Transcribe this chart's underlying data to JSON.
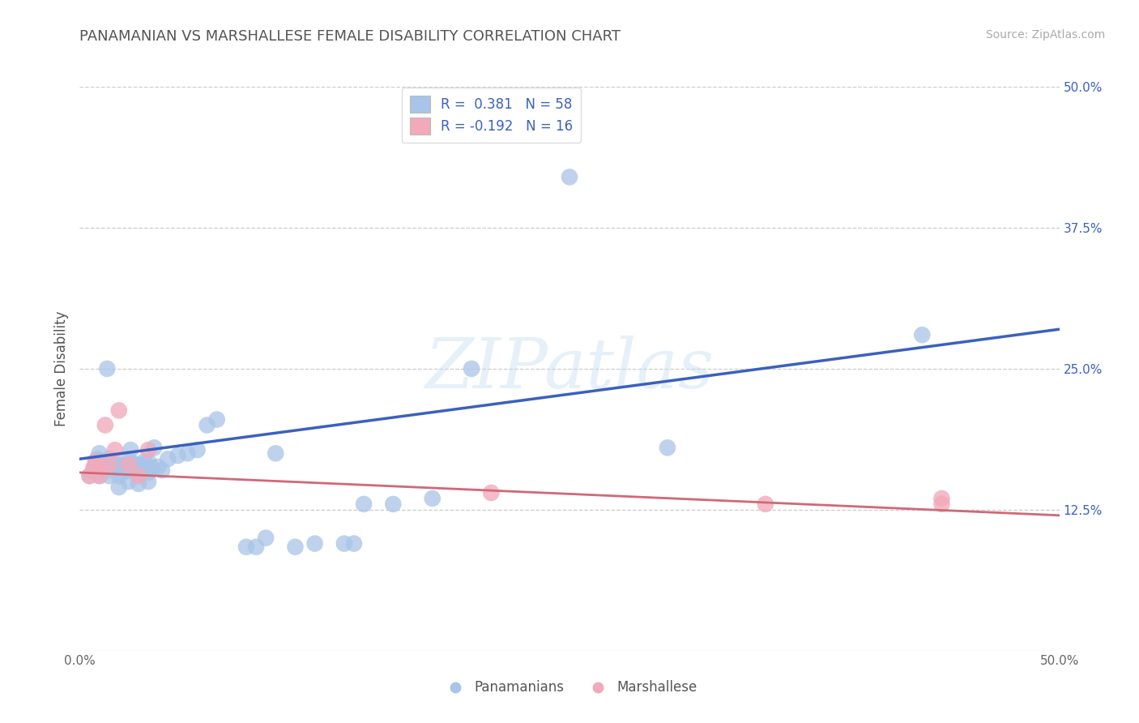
{
  "title": "PANAMANIAN VS MARSHALLESE FEMALE DISABILITY CORRELATION CHART",
  "source": "Source: ZipAtlas.com",
  "ylabel": "Female Disability",
  "xlim": [
    0.0,
    0.5
  ],
  "ylim": [
    0.0,
    0.5
  ],
  "right_ytick_labels": [
    "50.0%",
    "37.5%",
    "25.0%",
    "12.5%"
  ],
  "right_ytick_positions": [
    0.5,
    0.375,
    0.25,
    0.125
  ],
  "blue_color": "#A8C4E8",
  "pink_color": "#F2AABB",
  "blue_line_color": "#3A60C0",
  "pink_line_color": "#D06878",
  "watermark_text": "ZIPatlas",
  "background_color": "#FFFFFF",
  "grid_color": "#CCCCCC",
  "blue_x": [
    0.005,
    0.007,
    0.008,
    0.009,
    0.01,
    0.01,
    0.01,
    0.01,
    0.012,
    0.013,
    0.014,
    0.015,
    0.015,
    0.015,
    0.018,
    0.02,
    0.02,
    0.02,
    0.022,
    0.023,
    0.025,
    0.025,
    0.025,
    0.026,
    0.028,
    0.03,
    0.03,
    0.03,
    0.032,
    0.033,
    0.035,
    0.035,
    0.035,
    0.037,
    0.038,
    0.04,
    0.042,
    0.045,
    0.05,
    0.055,
    0.06,
    0.065,
    0.07,
    0.085,
    0.09,
    0.095,
    0.1,
    0.11,
    0.12,
    0.135,
    0.14,
    0.145,
    0.16,
    0.18,
    0.2,
    0.25,
    0.3,
    0.43
  ],
  "blue_y": [
    0.155,
    0.16,
    0.165,
    0.17,
    0.155,
    0.16,
    0.168,
    0.175,
    0.158,
    0.165,
    0.25,
    0.155,
    0.163,
    0.17,
    0.165,
    0.145,
    0.155,
    0.165,
    0.158,
    0.165,
    0.15,
    0.16,
    0.17,
    0.178,
    0.165,
    0.148,
    0.155,
    0.165,
    0.16,
    0.168,
    0.15,
    0.158,
    0.168,
    0.162,
    0.18,
    0.163,
    0.16,
    0.17,
    0.173,
    0.175,
    0.178,
    0.2,
    0.205,
    0.092,
    0.092,
    0.1,
    0.175,
    0.092,
    0.095,
    0.095,
    0.095,
    0.13,
    0.13,
    0.135,
    0.25,
    0.42,
    0.18,
    0.28
  ],
  "pink_x": [
    0.005,
    0.007,
    0.008,
    0.01,
    0.01,
    0.013,
    0.015,
    0.018,
    0.02,
    0.025,
    0.03,
    0.035,
    0.21,
    0.35,
    0.44,
    0.44
  ],
  "pink_y": [
    0.155,
    0.162,
    0.168,
    0.155,
    0.162,
    0.2,
    0.165,
    0.178,
    0.213,
    0.165,
    0.155,
    0.178,
    0.14,
    0.13,
    0.135,
    0.13
  ],
  "blue_line_x0": 0.0,
  "blue_line_y0": 0.17,
  "blue_line_x1": 0.5,
  "blue_line_y1": 0.285,
  "pink_line_x0": 0.0,
  "pink_line_y0": 0.158,
  "pink_line_x1": 0.5,
  "pink_line_y1": 0.12
}
